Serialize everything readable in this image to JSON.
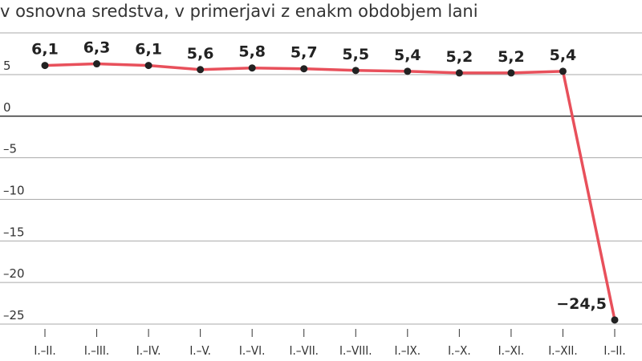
{
  "chart_data": {
    "type": "line",
    "title": "v osnovna sredstva, v primerjavi z enakm obdobjem lani",
    "xlabel": "",
    "ylabel": "",
    "categories": [
      "I.–II.",
      "I.–III.",
      "I.–IV.",
      "I.–V.",
      "I.–VI.",
      "I.–VII.",
      "I.–VIII.",
      "I.–IX.",
      "I.–X.",
      "I.–XI.",
      "I.–XII.",
      "I.–II."
    ],
    "series": [
      {
        "values": [
          6.1,
          6.3,
          6.1,
          5.6,
          5.8,
          5.7,
          5.5,
          5.4,
          5.2,
          5.2,
          5.4,
          -24.5
        ],
        "labels": [
          "6,1",
          "6,3",
          "6,1",
          "5,6",
          "5,8",
          "5,7",
          "5,5",
          "5,4",
          "5,2",
          "5,2",
          "5,4",
          "−24,5"
        ]
      }
    ],
    "yticks": [
      5,
      0,
      -5,
      -10,
      -15,
      -20,
      -25
    ],
    "ytick_labels": [
      "5",
      "0",
      "–5",
      "–10",
      "–15",
      "–20",
      "–25"
    ],
    "ylim": [
      -25,
      5
    ],
    "grid": true,
    "line_color": "#e8505b",
    "marker_color": "#222222",
    "grid_color": "#aaaaaa",
    "zero_line_color": "#222222"
  }
}
